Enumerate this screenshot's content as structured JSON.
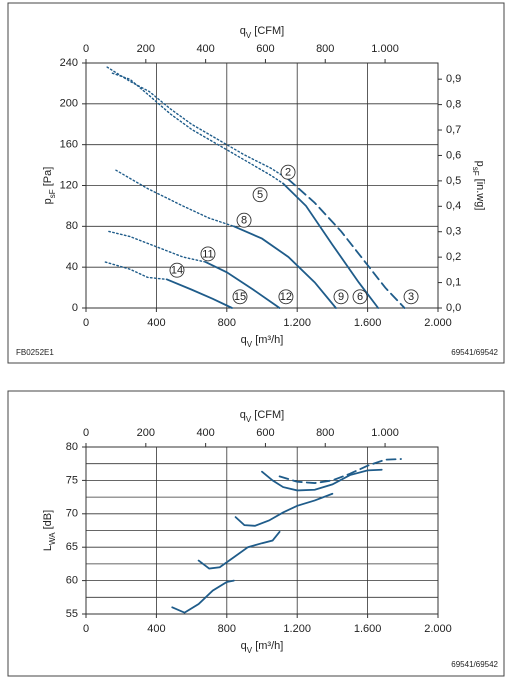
{
  "footer": {
    "code": "FB0252E1",
    "models_top": "69541/69542",
    "models_bottom": "69541/69542"
  },
  "chart_data": [
    {
      "type": "line",
      "xlabel": {
        "main": "q",
        "sub": "V",
        "rest": " [m³/h]"
      },
      "x2label": {
        "main": "q",
        "sub": "V",
        "rest": " [CFM]"
      },
      "ylabel": {
        "main": "p",
        "sub": "sF",
        "rest": " [Pa]"
      },
      "y2label": {
        "main": "p",
        "sub": "sF",
        "rest": " [in.wg]"
      },
      "xlim": [
        0,
        2000
      ],
      "xticks": [
        0,
        400,
        800,
        {
          "value": 1200,
          "label": "1.200"
        },
        {
          "value": 1600,
          "label": "1.600"
        },
        {
          "value": 2000,
          "label": "2.000"
        }
      ],
      "x2lim": [
        0,
        1177
      ],
      "x2ticks": [
        0,
        200,
        400,
        600,
        800,
        {
          "value": 1000,
          "label": "1.000"
        }
      ],
      "ylim": [
        0,
        240
      ],
      "yticks": [
        0,
        40,
        80,
        120,
        160,
        200,
        240
      ],
      "y2lim": [
        0,
        0.9636
      ],
      "y2ticks": [
        {
          "value": 0,
          "label": "0,0"
        },
        {
          "value": 0.1,
          "label": "0,1"
        },
        {
          "value": 0.2,
          "label": "0,2"
        },
        {
          "value": 0.3,
          "label": "0,3"
        },
        {
          "value": 0.4,
          "label": "0,4"
        },
        {
          "value": 0.5,
          "label": "0,5"
        },
        {
          "value": 0.6,
          "label": "0,6"
        },
        {
          "value": 0.7,
          "label": "0,7"
        },
        {
          "value": 0.8,
          "label": "0,8"
        },
        {
          "value": 0.9,
          "label": "0,9"
        }
      ],
      "grid": true,
      "series": [
        {
          "color": "#1f5c8a",
          "style": "dotted",
          "x": [
            120,
            250,
            360,
            480,
            600,
            750,
            900,
            1050,
            1150
          ],
          "values": [
            236,
            222,
            212,
            195,
            180,
            165,
            150,
            137,
            126
          ]
        },
        {
          "color": "#1f5c8a",
          "style": "dashed",
          "x": [
            1150,
            1300,
            1450,
            1600,
            1700,
            1810
          ],
          "values": [
            126,
            103,
            75,
            42,
            20,
            0
          ]
        },
        {
          "color": "#1f5c8a",
          "style": "dotted",
          "x": [
            150,
            250,
            360,
            480,
            600,
            750,
            900,
            1050,
            1120
          ],
          "values": [
            230,
            224,
            208,
            190,
            175,
            160,
            145,
            130,
            122
          ]
        },
        {
          "color": "#1f5c8a",
          "style": "solid",
          "x": [
            1120,
            1250,
            1400,
            1550,
            1660
          ],
          "values": [
            122,
            100,
            62,
            25,
            0
          ]
        },
        {
          "color": "#1f5c8a",
          "style": "dotted",
          "x": [
            170,
            350,
            550,
            700,
            840
          ],
          "values": [
            135,
            117,
            100,
            88,
            80
          ]
        },
        {
          "color": "#1f5c8a",
          "style": "solid",
          "x": [
            840,
            1000,
            1150,
            1300,
            1420
          ],
          "values": [
            80,
            68,
            50,
            25,
            0
          ]
        },
        {
          "color": "#1f5c8a",
          "style": "dotted",
          "x": [
            130,
            250,
            400,
            550,
            680
          ],
          "values": [
            75,
            70,
            60,
            50,
            45
          ]
        },
        {
          "color": "#1f5c8a",
          "style": "solid",
          "x": [
            680,
            800,
            950,
            1100
          ],
          "values": [
            45,
            35,
            18,
            0
          ]
        },
        {
          "color": "#1f5c8a",
          "style": "dotted",
          "x": [
            110,
            250,
            350,
            460
          ],
          "values": [
            45,
            38,
            30,
            28
          ]
        },
        {
          "color": "#1f5c8a",
          "style": "solid",
          "x": [
            460,
            600,
            720,
            830
          ],
          "values": [
            28,
            18,
            9,
            0
          ]
        }
      ],
      "annotations": [
        {
          "text": "2",
          "x": 1148,
          "y": 133
        },
        {
          "text": "5",
          "x": 989,
          "y": 111
        },
        {
          "text": "8",
          "x": 898,
          "y": 86
        },
        {
          "text": "11",
          "x": 693,
          "y": 53
        },
        {
          "text": "14",
          "x": 517,
          "y": 37
        },
        {
          "text": "15",
          "x": 875,
          "y": 11
        },
        {
          "text": "12",
          "x": 1136,
          "y": 11
        },
        {
          "text": "9",
          "x": 1449,
          "y": 11
        },
        {
          "text": "6",
          "x": 1557,
          "y": 11
        },
        {
          "text": "3",
          "x": 1847,
          "y": 11
        }
      ]
    },
    {
      "type": "line",
      "xlabel": {
        "main": "q",
        "sub": "V",
        "rest": " [m³/h]"
      },
      "x2label": {
        "main": "q",
        "sub": "V",
        "rest": " [CFM]"
      },
      "ylabel": {
        "main": "L",
        "sub": "WA",
        "rest": " [dB]"
      },
      "xlim": [
        0,
        2000
      ],
      "xticks": [
        0,
        400,
        800,
        {
          "value": 1200,
          "label": "1.200"
        },
        {
          "value": 1600,
          "label": "1.600"
        },
        {
          "value": 2000,
          "label": "2.000"
        }
      ],
      "x2lim": [
        0,
        1177
      ],
      "x2ticks": [
        0,
        200,
        400,
        600,
        800,
        {
          "value": 1000,
          "label": "1.000"
        }
      ],
      "ylim": [
        55,
        80
      ],
      "yticks": [
        55,
        60,
        65,
        70,
        75,
        80
      ],
      "yminor": [
        57.5,
        62.5,
        67.5,
        72.5,
        77.5
      ],
      "grid": true,
      "series": [
        {
          "color": "#1f5c8a",
          "style": "solid",
          "x": [
            490,
            560,
            640,
            720,
            800,
            840
          ],
          "values": [
            56,
            55.2,
            56.5,
            58.5,
            59.8,
            60
          ]
        },
        {
          "color": "#1f5c8a",
          "style": "solid",
          "x": [
            640,
            700,
            760,
            840,
            920,
            1000,
            1060,
            1100
          ],
          "values": [
            63,
            61.8,
            62,
            63.5,
            65,
            65.6,
            66,
            67.3
          ]
        },
        {
          "color": "#1f5c8a",
          "style": "solid",
          "x": [
            850,
            900,
            960,
            1040,
            1120,
            1200,
            1300,
            1400
          ],
          "values": [
            69.5,
            68.3,
            68.2,
            69,
            70.2,
            71.2,
            72,
            73
          ]
        },
        {
          "color": "#1f5c8a",
          "style": "solid",
          "x": [
            1000,
            1060,
            1120,
            1200,
            1300,
            1400,
            1500,
            1600,
            1680
          ],
          "values": [
            76.3,
            75,
            74,
            73.5,
            73.6,
            74.4,
            75.8,
            76.5,
            76.6
          ]
        },
        {
          "color": "#1f5c8a",
          "style": "dashed",
          "x": [
            1100,
            1200,
            1300,
            1400,
            1500,
            1600,
            1700,
            1790
          ],
          "values": [
            75.6,
            74.8,
            74.6,
            75,
            76,
            77.2,
            78.1,
            78.2
          ]
        }
      ]
    }
  ]
}
